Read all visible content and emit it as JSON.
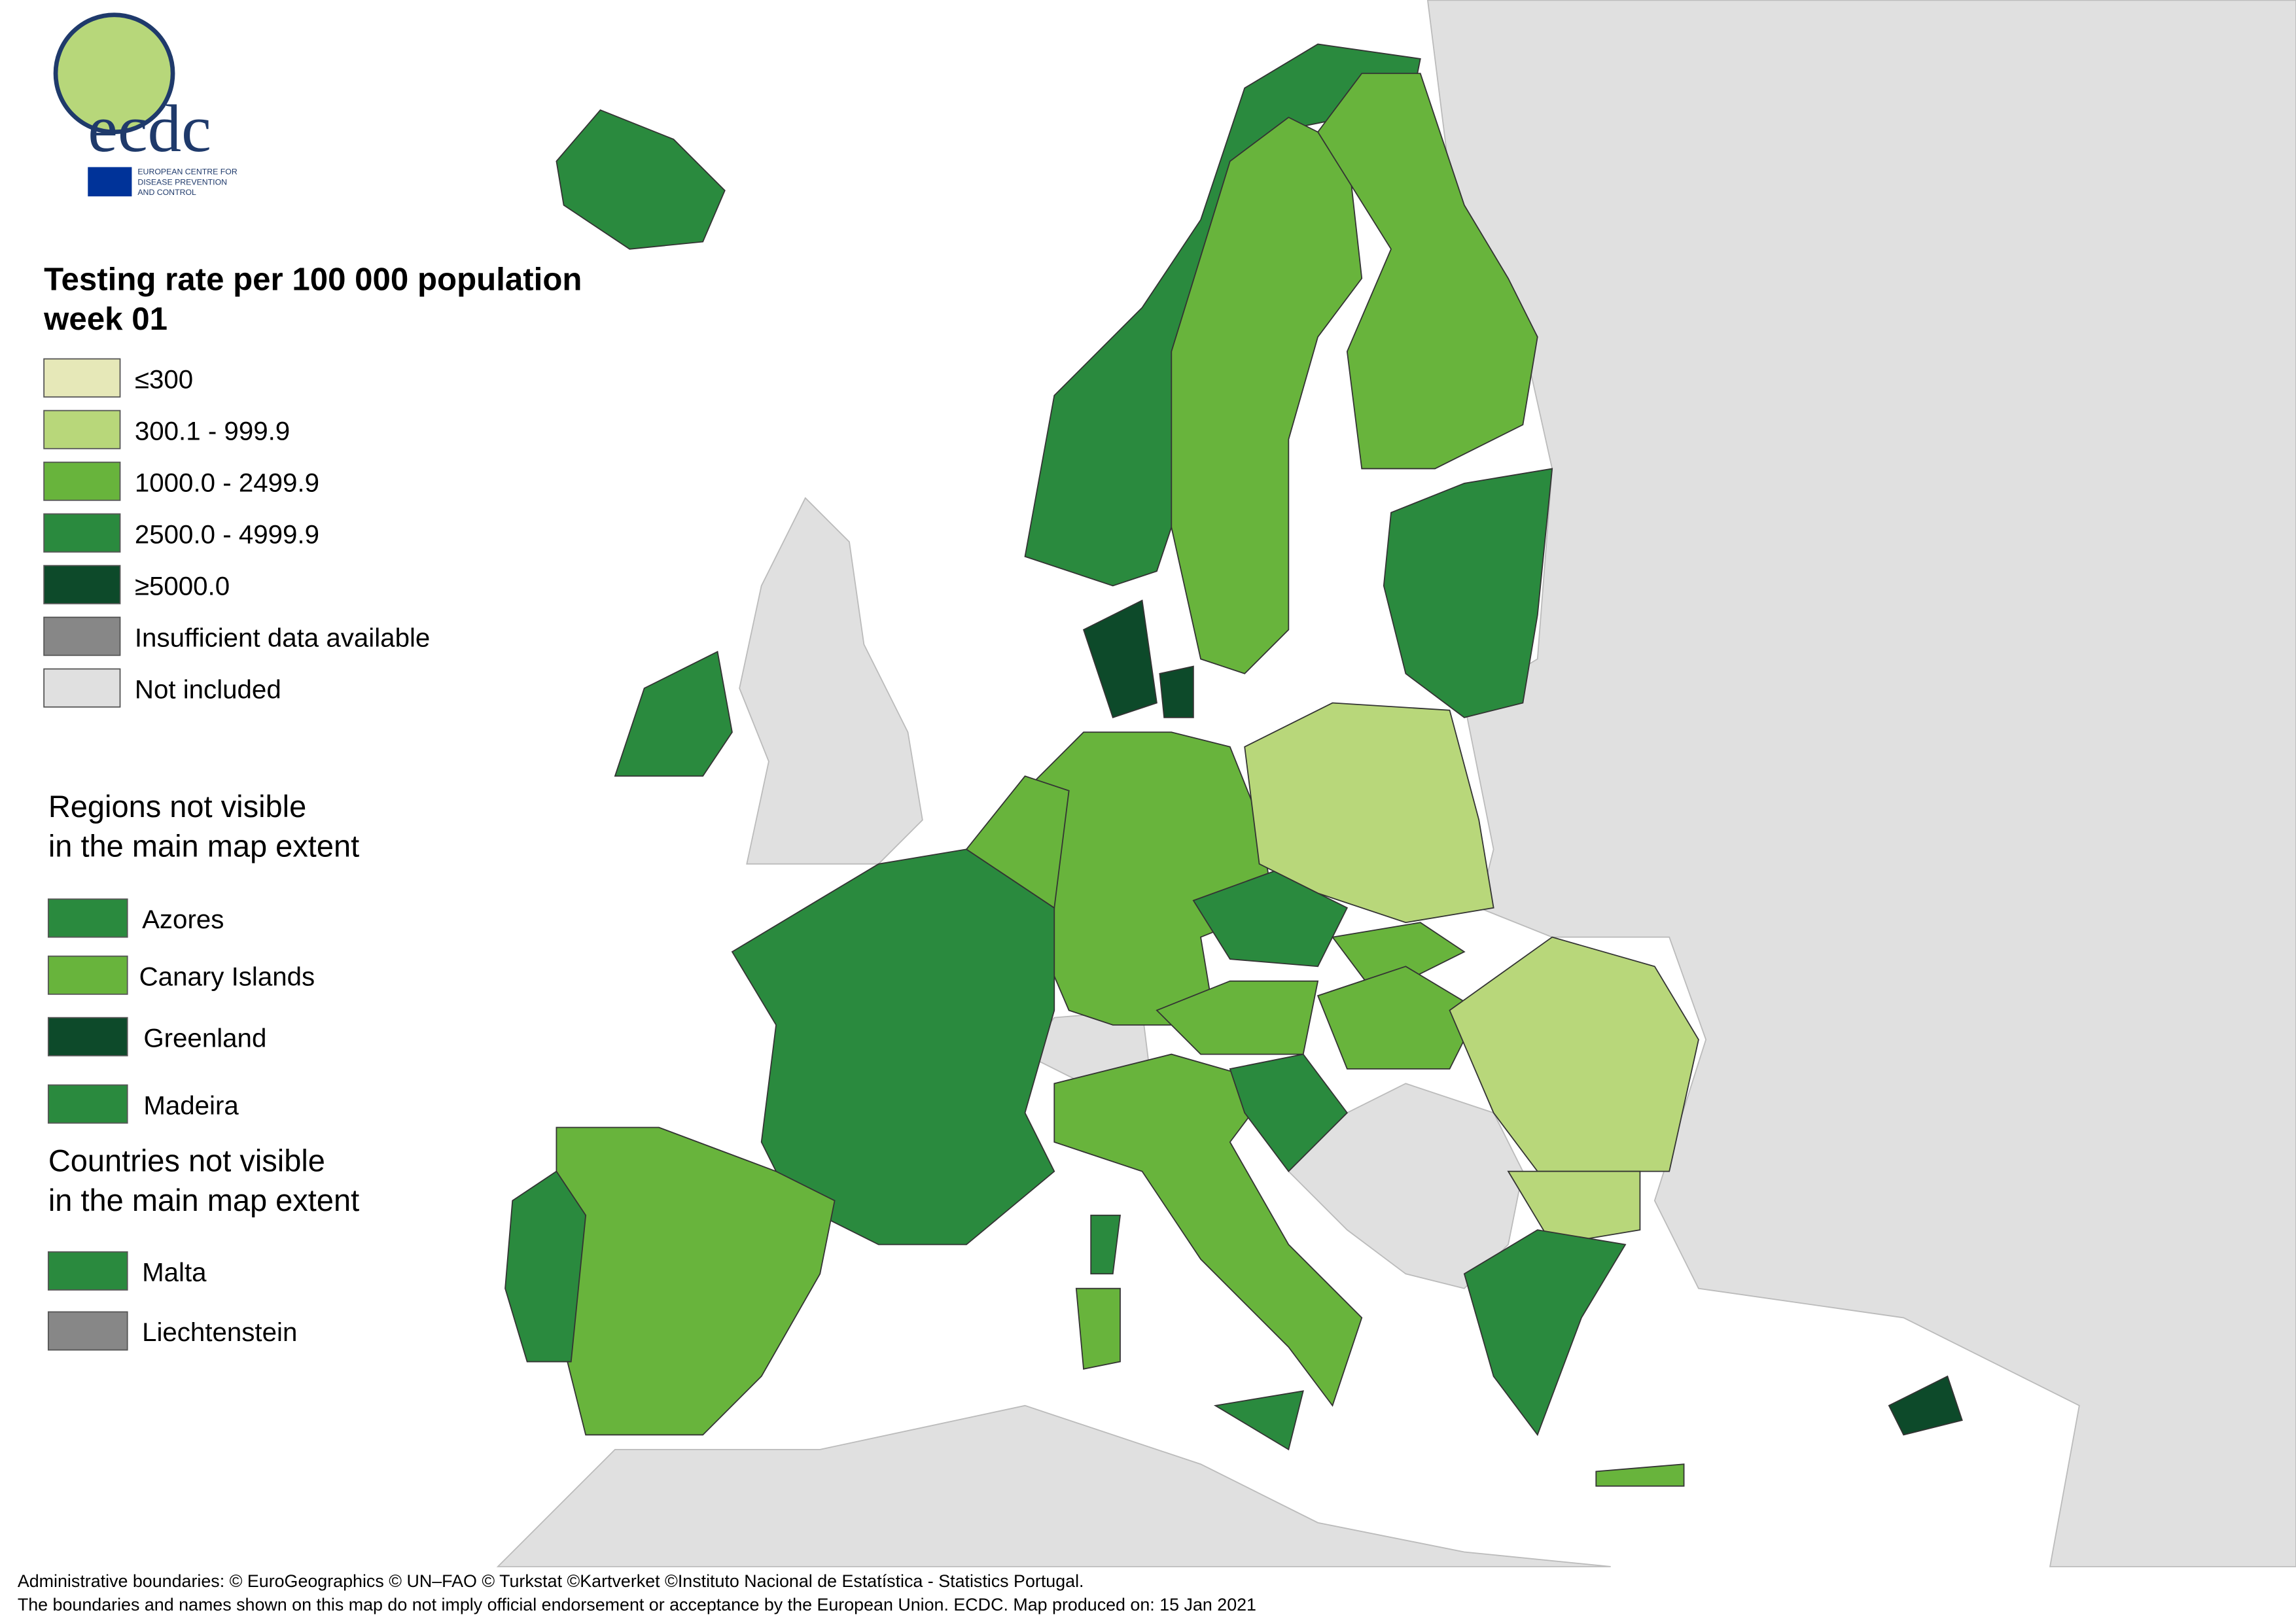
{
  "logo": {
    "name": "ecdc",
    "subtitle": [
      "EUROPEAN CENTRE FOR",
      "DISEASE PREVENTION",
      "AND CONTROL"
    ]
  },
  "title": [
    "Testing rate per 100 000 population",
    "week 01"
  ],
  "legend": {
    "items": [
      {
        "label": "≤300",
        "color": "#e6e8b8"
      },
      {
        "label": "300.1 - 999.9",
        "color": "#b8d77a"
      },
      {
        "label": "1000.0 - 2499.9",
        "color": "#68b43c"
      },
      {
        "label": "2500.0 - 4999.9",
        "color": "#2a8a3e"
      },
      {
        "label": "≥5000.0",
        "color": "#0d4a2a"
      },
      {
        "label": "Insufficient data available",
        "color": "#878787"
      },
      {
        "label": "Not included",
        "color": "#e0e0e0"
      }
    ]
  },
  "regions": {
    "title": [
      "Regions not visible",
      "in the main map extent"
    ],
    "items": [
      "Azores",
      "Canary Islands",
      "Greenland",
      "Madeira"
    ]
  },
  "countries": {
    "title": [
      "Countries not visible",
      "in the main map extent"
    ],
    "items": [
      "Malta",
      "Liechtenstein"
    ]
  },
  "footer": [
    "Administrative boundaries: © EuroGeographics © UN–FAO © Turkstat ©Kartverket ©Instituto Nacional de Estatística - Statistics Portugal.",
    "The boundaries and names shown on this map do not imply official endorsement or acceptance by the European Union. ECDC. Map produced on: 15 Jan 2021"
  ]
}
